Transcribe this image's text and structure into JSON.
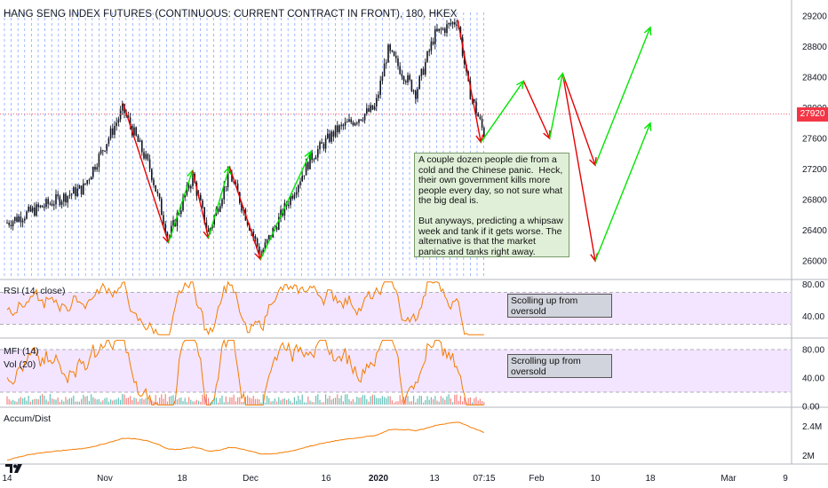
{
  "header": {
    "title": "HANG SENG INDEX FUTURES (CONTINUOUS: CURRENT CONTRACT IN FRONT), 180, HKEX"
  },
  "colors": {
    "candle": "#131722",
    "grid_dash": "#2962ff",
    "up_arrow": "#00e600",
    "down_arrow": "#e60000",
    "price_line": "#f23645",
    "indicator_line": "#f57c00",
    "band_fill": "#f3e5ff",
    "note_bg": "#e0f0d8"
  },
  "annotations": {
    "main_note": "A couple dozen people die from a cold and the Chinese panic.  Heck, their own government kills more people every day, so not sure what the big deal is.\n\nBut anyways, predicting a whipsaw week and tank if it gets worse. The alternative is that the market panics and tanks right away.",
    "rsi_note": "Scolling up from oversold",
    "mfi_note": "Scrolling up from oversold"
  },
  "indicators": {
    "rsi_label": "RSI (14, close)",
    "mfi_label": "MFI (14)",
    "vol_label": "Vol (20)",
    "accdist_label": "Accum/Dist"
  },
  "price_tag": "27920",
  "chart_data": [
    {
      "type": "candlestick",
      "title": "HANG SENG INDEX FUTURES (CONTINUOUS: CURRENT CONTRACT IN FRONT), 180, HKEX",
      "y_ticks": [
        "29200",
        "28800",
        "28400",
        "28000",
        "27600",
        "27200",
        "26800",
        "26400",
        "26000"
      ],
      "ylim": [
        25900,
        29300
      ],
      "last_price": 27920,
      "x_ticks": [
        "14",
        "Nov",
        "18",
        "Dec",
        "16",
        "2020",
        "13",
        "07:15",
        "Feb",
        "10",
        "18",
        "Mar",
        "9"
      ],
      "anchors": [
        {
          "date": "Oct 14",
          "close": 26500
        },
        {
          "date": "Oct 28",
          "close": 26950
        },
        {
          "date": "Nov 05",
          "close": 27980
        },
        {
          "date": "Nov 11",
          "close": 27200
        },
        {
          "date": "Nov 15",
          "close": 26300
        },
        {
          "date": "Nov 20",
          "close": 27100
        },
        {
          "date": "Nov 23",
          "close": 26360
        },
        {
          "date": "Nov 27",
          "close": 27150
        },
        {
          "date": "Dec 03",
          "close": 26080
        },
        {
          "date": "Dec 13",
          "close": 27350
        },
        {
          "date": "Dec 19",
          "close": 27700
        },
        {
          "date": "Dec 31",
          "close": 28000
        },
        {
          "date": "Jan 03",
          "close": 28750
        },
        {
          "date": "Jan 09",
          "close": 28200
        },
        {
          "date": "Jan 13",
          "close": 28950
        },
        {
          "date": "Jan 20",
          "close": 29150
        },
        {
          "date": "Jan 23",
          "close": 28300
        },
        {
          "date": "Jan 28",
          "close": 27650
        }
      ],
      "projection_up": [
        [
          "Jan 27 27550",
          "Jan 31 28350"
        ],
        [
          "Feb 03 27600",
          "Feb 05 28450"
        ],
        [
          "Feb 10 27250",
          "Feb 18 29050"
        ],
        [
          "Feb 10 26000",
          "Feb 18 27800"
        ]
      ],
      "projection_down": [
        [
          "Jan 20 29150",
          "Jan 27 27550"
        ],
        [
          "Jan 31 28350",
          "Feb 03 27600"
        ],
        [
          "Feb 05 28450",
          "Feb 10 27250"
        ],
        [
          "Feb 05 28450",
          "Feb 10 26000"
        ]
      ]
    },
    {
      "type": "line",
      "name": "RSI (14, close)",
      "y_ticks": [
        "80.00",
        "40.00"
      ],
      "ylim": [
        15,
        85
      ],
      "band": [
        30,
        70
      ]
    },
    {
      "type": "line",
      "name": "MFI (14)",
      "y_ticks": [
        "80.00",
        "40.00",
        "0.00"
      ],
      "ylim": [
        0,
        95
      ],
      "band": [
        20,
        80
      ]
    },
    {
      "type": "line",
      "name": "Accum/Dist",
      "y_ticks": [
        "2.4M",
        "2M"
      ],
      "ylim": [
        1.9,
        2.65
      ]
    }
  ]
}
